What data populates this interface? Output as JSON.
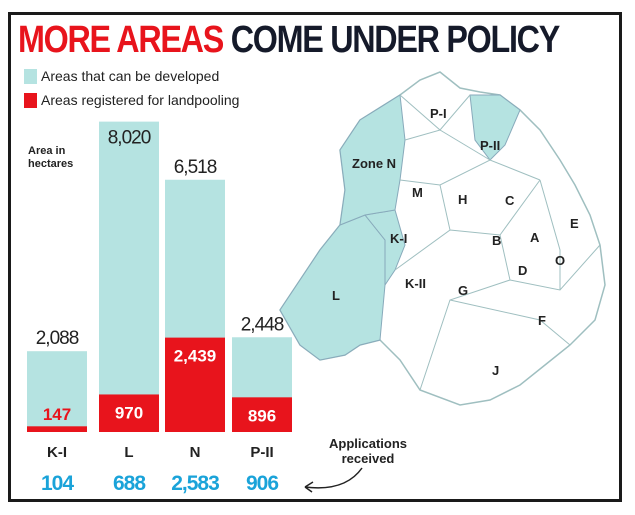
{
  "chart_data": {
    "type": "bar",
    "title": "MORE AREAS COME UNDER POLICY",
    "title_red": "MORE AREAS",
    "title_dark": "COME UNDER POLICY",
    "ylabel": "Area in hectares",
    "categories": [
      "K-I",
      "L",
      "N",
      "P-II"
    ],
    "series": [
      {
        "name": "Areas that can be developed",
        "color": "#b5e3e1",
        "values": [
          2088,
          8020,
          6518,
          2448
        ],
        "labels": [
          "2,088",
          "8,020",
          "6,518",
          "2,448"
        ]
      },
      {
        "name": "Areas registered for landpooling",
        "color": "#e8141c",
        "values": [
          147,
          970,
          2439,
          896
        ],
        "labels": [
          "147",
          "970",
          "2,439",
          "896"
        ]
      }
    ],
    "applications": {
      "label": "Applications received",
      "values": [
        "104",
        "688",
        "2,583",
        "906"
      ],
      "color": "#1aa3d9"
    }
  },
  "map": {
    "zones": [
      "P-I",
      "P-II",
      "Zone N",
      "M",
      "H",
      "C",
      "K-I",
      "B",
      "A",
      "E",
      "D",
      "O",
      "K-II",
      "G",
      "L",
      "F",
      "J"
    ],
    "highlighted": [
      "L",
      "K-I",
      "Zone N",
      "P-II"
    ]
  }
}
